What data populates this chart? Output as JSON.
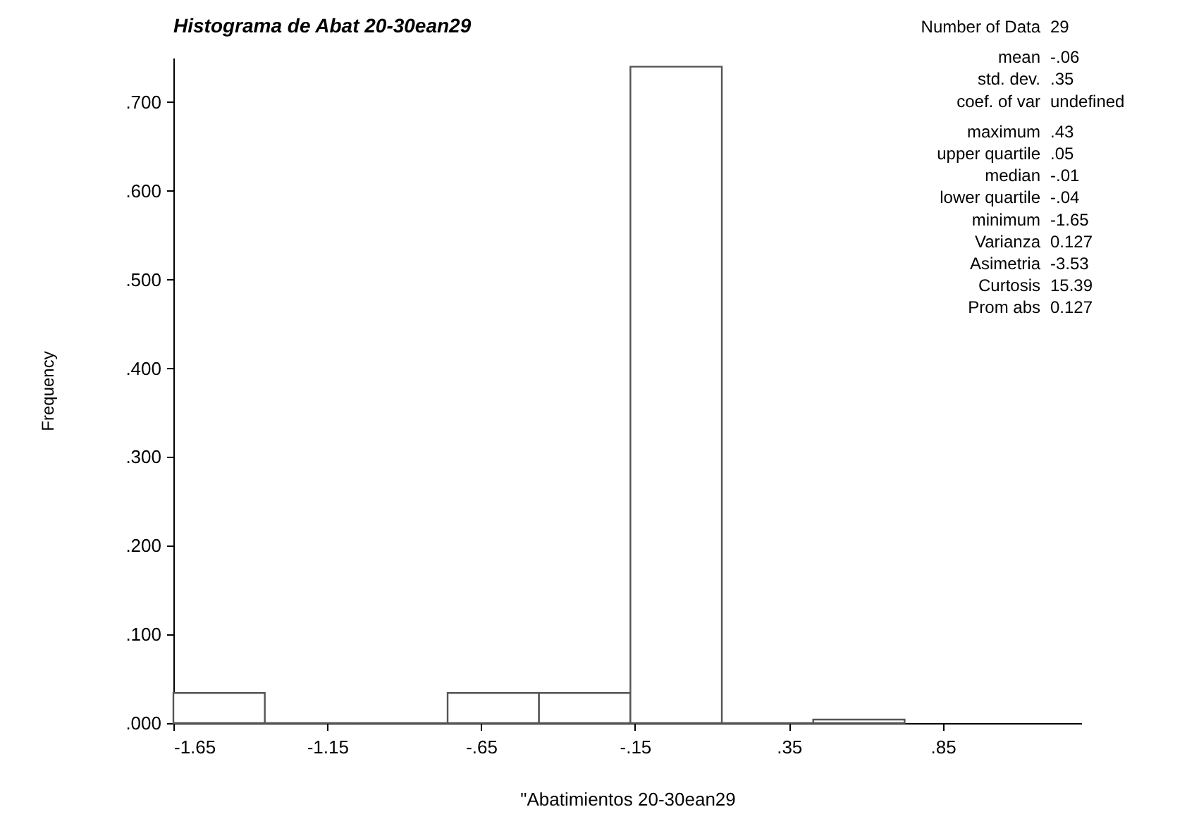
{
  "chart_data": {
    "type": "histogram",
    "title": "Histograma de Abat 20-30ean29",
    "xlabel": "\"Abatimientos 20-30ean29",
    "ylabel": "Frequency",
    "bins": [
      -1.65,
      -1.353,
      -1.056,
      -0.759,
      -0.462,
      -0.165,
      0.132,
      0.429,
      0.726
    ],
    "values": [
      0.034,
      0,
      0,
      0.034,
      0.034,
      0.74,
      0,
      0.004
    ],
    "color": "#555555",
    "xlim": [
      -1.65,
      1.3
    ],
    "xticks": [
      -1.65,
      -1.15,
      {
        "value": -0.65,
        "label": "-.65"
      },
      {
        "value": -0.15,
        "label": "-.15"
      },
      {
        "value": 0.35,
        "label": ".35"
      },
      {
        "value": 0.85,
        "label": ".85"
      }
    ],
    "ylim": [
      0,
      0.75
    ],
    "yticks": [
      {
        "value": 0,
        "label": ".000"
      },
      {
        "value": 0.1,
        "label": ".100"
      },
      {
        "value": 0.2,
        "label": ".200"
      },
      {
        "value": 0.3,
        "label": ".300"
      },
      {
        "value": 0.4,
        "label": ".400"
      },
      {
        "value": 0.5,
        "label": ".500"
      },
      {
        "value": 0.6,
        "label": ".600"
      },
      {
        "value": 0.7,
        "label": ".700"
      }
    ],
    "annotations": [
      "Number of Data 29",
      "mean -.06",
      "std. dev. .35",
      "coef. of var undefined",
      "maximum .43",
      "upper quartile .05",
      "median -.01",
      "lower quartile -.04",
      "minimum -1.65",
      "Varianza 0.127",
      "Asimetria -3.53",
      "Curtosis 15.39",
      "Prom abs 0.127"
    ]
  }
}
